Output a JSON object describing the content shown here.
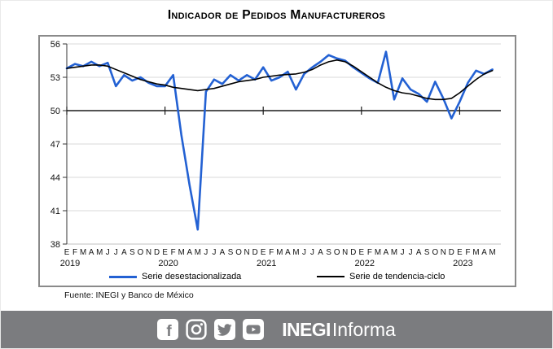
{
  "title": "Indicador de Pedidos Manufactureros",
  "source_note": "Fuente: INEGI y Banco de México",
  "banner": {
    "background_color": "#7b7c7f",
    "icons": [
      {
        "name": "facebook-icon"
      },
      {
        "name": "instagram-icon"
      },
      {
        "name": "twitter-icon"
      },
      {
        "name": "youtube-icon"
      }
    ],
    "brand_bold": "INEGI",
    "brand_regular": "Informa"
  },
  "chart_data": {
    "type": "line",
    "title": "Indicador de Pedidos Manufactureros",
    "x_unit": "month",
    "ylim": [
      38,
      56
    ],
    "y_ticks": [
      38,
      41,
      44,
      47,
      50,
      53,
      56
    ],
    "reference_line": 50,
    "grid": true,
    "legend_position": "bottom",
    "month_labels": [
      "E",
      "F",
      "M",
      "A",
      "M",
      "J",
      "J",
      "A",
      "S",
      "O",
      "N",
      "D",
      "E",
      "F",
      "M",
      "A",
      "M",
      "J",
      "J",
      "A",
      "S",
      "O",
      "N",
      "D",
      "E",
      "F",
      "M",
      "A",
      "M",
      "J",
      "J",
      "A",
      "S",
      "O",
      "N",
      "D",
      "E",
      "F",
      "M",
      "A",
      "M",
      "J",
      "J",
      "A",
      "S",
      "O",
      "N",
      "D",
      "E",
      "F",
      "M",
      "A",
      "M"
    ],
    "year_labels": [
      {
        "label": "2019",
        "month_index": 0
      },
      {
        "label": "2020",
        "month_index": 12
      },
      {
        "label": "2021",
        "month_index": 24
      },
      {
        "label": "2022",
        "month_index": 36
      },
      {
        "label": "2023",
        "month_index": 48
      }
    ],
    "series": [
      {
        "name": "Serie desestacionalizada",
        "color": "#2361d3",
        "width": 2.6,
        "values": [
          53.8,
          54.2,
          54.0,
          54.4,
          54.0,
          54.3,
          52.2,
          53.2,
          52.7,
          53.0,
          52.5,
          52.2,
          52.2,
          53.2,
          47.8,
          43.3,
          39.3,
          51.7,
          52.8,
          52.4,
          53.2,
          52.7,
          53.2,
          52.8,
          53.9,
          52.7,
          53.0,
          53.5,
          51.9,
          53.3,
          53.9,
          54.4,
          55.0,
          54.7,
          54.5,
          53.9,
          53.4,
          52.9,
          52.5,
          55.3,
          51.0,
          52.9,
          51.9,
          51.5,
          50.8,
          52.6,
          51.1,
          49.3,
          50.8,
          52.5,
          53.6,
          53.3,
          53.7
        ]
      },
      {
        "name": "Serie de tendencia-ciclo",
        "color": "#000000",
        "width": 1.6,
        "values": [
          53.8,
          53.9,
          54.0,
          54.1,
          54.1,
          54.0,
          53.7,
          53.4,
          53.1,
          52.8,
          52.6,
          52.4,
          52.3,
          52.1,
          52.0,
          51.9,
          51.8,
          51.9,
          52.0,
          52.2,
          52.4,
          52.6,
          52.7,
          52.8,
          53.0,
          53.1,
          53.2,
          53.25,
          53.3,
          53.45,
          53.7,
          54.1,
          54.4,
          54.55,
          54.4,
          54.0,
          53.5,
          53.0,
          52.5,
          52.1,
          51.8,
          51.6,
          51.5,
          51.3,
          51.1,
          51.0,
          51.0,
          51.1,
          51.6,
          52.2,
          52.8,
          53.3,
          53.6
        ]
      }
    ]
  }
}
